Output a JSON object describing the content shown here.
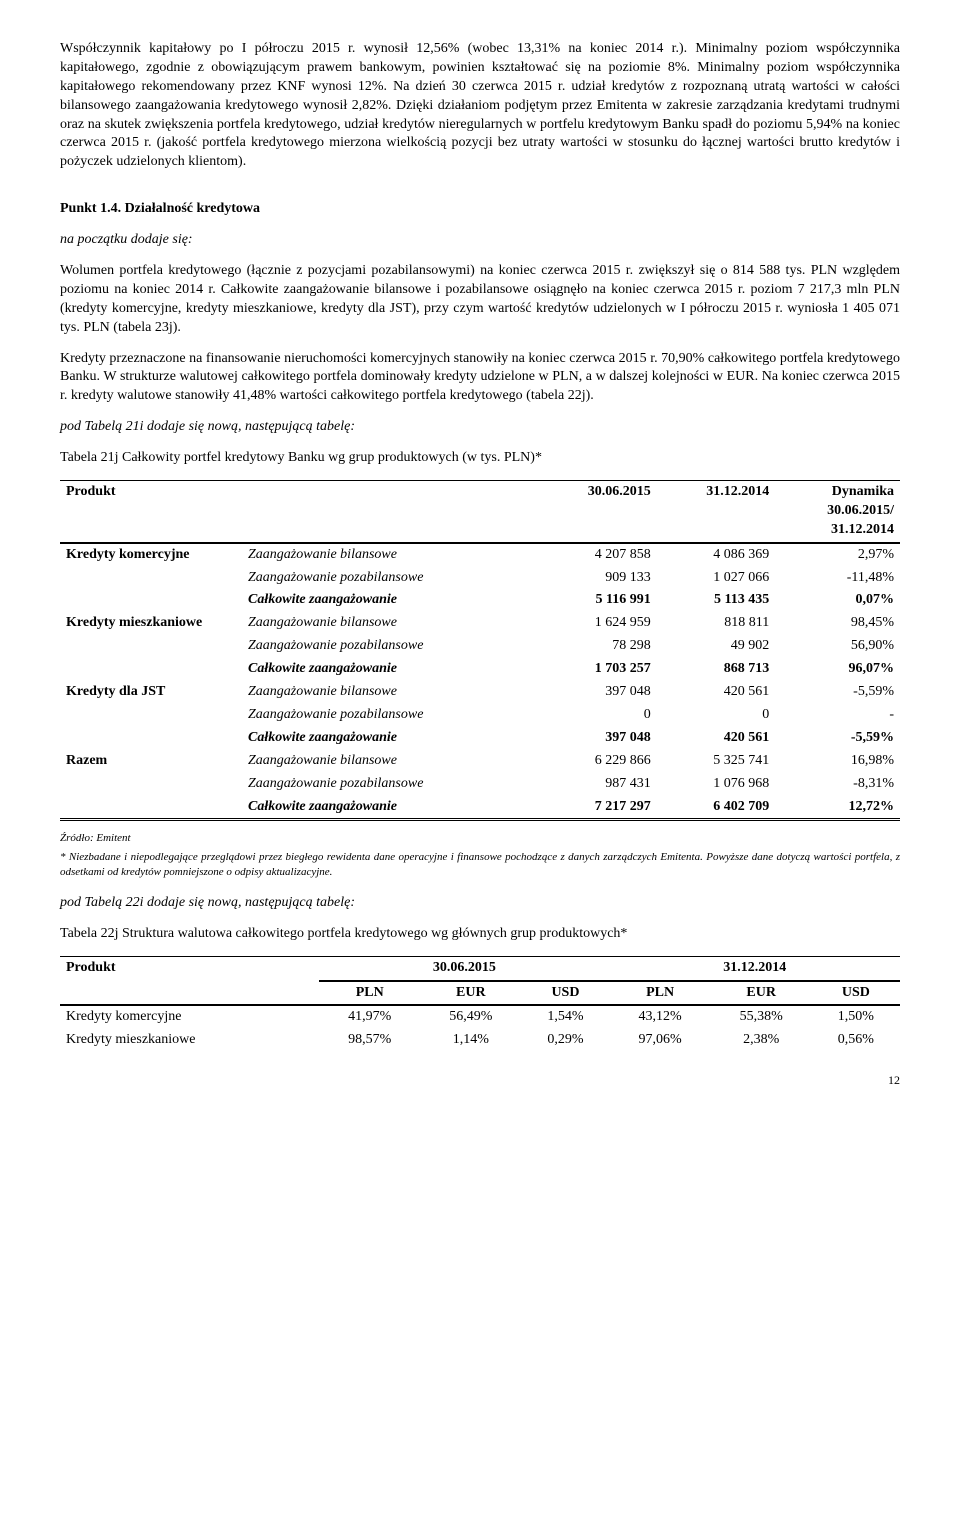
{
  "para1": "Współczynnik kapitałowy po I półroczu 2015 r. wynosił 12,56% (wobec 13,31% na koniec 2014 r.). Minimalny poziom współczynnika kapitałowego, zgodnie z obowiązującym prawem bankowym, powinien kształtować się na poziomie 8%. Minimalny poziom współczynnika kapitałowego rekomendowany przez KNF wynosi 12%. Na dzień 30 czerwca 2015 r.  udział  kredytów z rozpoznaną utratą wartości w całości bilansowego zaangażowania kredytowego wynosił 2,82%. Dzięki działaniom podjętym przez Emitenta w zakresie zarządzania kredytami trudnymi oraz na skutek zwiększenia portfela kredytowego, udział kredytów nieregularnych w portfelu kredytowym Banku spadł do poziomu 5,94%  na koniec czerwca 2015 r. (jakość portfela kredytowego mierzona wielkością pozycji bez utraty wartości w stosunku do łącznej wartości brutto kredytów i pożyczek udzielonych klientom).",
  "punkt14_title": "Punkt 1.4. Działalność kredytowa",
  "na_poczatku": "na początku dodaje się:",
  "para2": "Wolumen portfela kredytowego (łącznie z pozycjami pozabilansowymi)  na koniec czerwca 2015 r. zwiększył się o 814 588 tys. PLN względem poziomu na koniec 2014 r. Całkowite zaangażowanie bilansowe i pozabilansowe osiągnęło na koniec czerwca 2015 r.  poziom 7 217,3 mln PLN (kredyty komercyjne, kredyty mieszkaniowe, kredyty dla JST), przy czym wartość kredytów udzielonych w I półroczu 2015 r. wyniosła 1 405 071 tys. PLN (tabela 23j).",
  "para3": "Kredyty przeznaczone na finansowanie nieruchomości komercyjnych stanowiły na koniec czerwca 2015 r. 70,90% całkowitego portfela kredytowego Banku. W strukturze walutowej całkowitego portfela dominowały kredyty udzielone w PLN, a w dalszej kolejności w EUR. Na koniec czerwca 2015 r. kredyty walutowe stanowiły 41,48% wartości całkowitego portfela kredytowego (tabela 22j).",
  "pod21i": "pod Tabelą 21i dodaje się nową, następującą tabelę:",
  "t21j_title": "Tabela 21j Całkowity portfel kredytowy Banku wg grup produktowych (w tys. PLN)*",
  "t1": {
    "h_produkt": "Produkt",
    "h_c1": "30.06.2015",
    "h_c2": "31.12.2014",
    "h_c3a": "Dynamika",
    "h_c3b": "30.06.2015/",
    "h_c3c": "31.12.2014",
    "groups": [
      {
        "name": "Kredyty komercyjne",
        "rows": [
          {
            "l": "Zaangażowanie bilansowe",
            "a": "4 207 858",
            "b": "4 086 369",
            "c": "2,97%"
          },
          {
            "l": "Zaangażowanie pozabilansowe",
            "a": "909 133",
            "b": "1 027 066",
            "c": "-11,48%"
          },
          {
            "l": "Całkowite zaangażowanie",
            "a": "5 116 991",
            "b": "5 113 435",
            "c": "0,07%",
            "bold": true
          }
        ]
      },
      {
        "name": "Kredyty mieszkaniowe",
        "rows": [
          {
            "l": "Zaangażowanie bilansowe",
            "a": "1 624 959",
            "b": "818 811",
            "c": "98,45%"
          },
          {
            "l": "Zaangażowanie pozabilansowe",
            "a": "78 298",
            "b": "49 902",
            "c": "56,90%"
          },
          {
            "l": "Całkowite zaangażowanie",
            "a": "1 703 257",
            "b": "868 713",
            "c": "96,07%",
            "bold": true
          }
        ]
      },
      {
        "name": "Kredyty dla JST",
        "rows": [
          {
            "l": "Zaangażowanie bilansowe",
            "a": "397 048",
            "b": "420 561",
            "c": "-5,59%"
          },
          {
            "l": "Zaangażowanie pozabilansowe",
            "a": "0",
            "b": "0",
            "c": "-"
          },
          {
            "l": "Całkowite zaangażowanie",
            "a": "397 048",
            "b": "420 561",
            "c": "-5,59%",
            "bold": true
          }
        ]
      },
      {
        "name": "Razem",
        "rows": [
          {
            "l": "Zaangażowanie bilansowe",
            "a": "6 229 866",
            "b": "5 325 741",
            "c": "16,98%"
          },
          {
            "l": "Zaangażowanie pozabilansowe",
            "a": "987 431",
            "b": "1 076 968",
            "c": "-8,31%"
          },
          {
            "l": "Całkowite zaangażowanie",
            "a": "7 217 297",
            "b": "6 402 709",
            "c": "12,72%",
            "bold": true,
            "last": true
          }
        ]
      }
    ]
  },
  "src": "Źródło: Emitent",
  "footnote": "* Niezbadane i niepodlegające przeglądowi  przez biegłego rewidenta dane operacyjne i finansowe pochodzące z danych zarządczych Emitenta. Powyższe dane dotyczą wartości portfela, z odsetkami od kredytów pomniejszone o odpisy aktualizacyjne.",
  "pod22i": "pod Tabelą 22i dodaje się nową, następującą tabelę:",
  "t22j_title": "Tabela 22j Struktura walutowa całkowitego portfela kredytowego wg głównych grup produktowych*",
  "t2": {
    "h_produkt": "Produkt",
    "h_d1": "30.06.2015",
    "h_d2": "31.12.2014",
    "cur": [
      "PLN",
      "EUR",
      "USD",
      "PLN",
      "EUR",
      "USD"
    ],
    "rows": [
      {
        "l": "Kredyty komercyjne",
        "v": [
          "41,97%",
          "56,49%",
          "1,54%",
          "43,12%",
          "55,38%",
          "1,50%"
        ]
      },
      {
        "l": "Kredyty mieszkaniowe",
        "v": [
          "98,57%",
          "1,14%",
          "0,29%",
          "97,06%",
          "2,38%",
          "0,56%"
        ]
      }
    ]
  },
  "pagenum": "12"
}
